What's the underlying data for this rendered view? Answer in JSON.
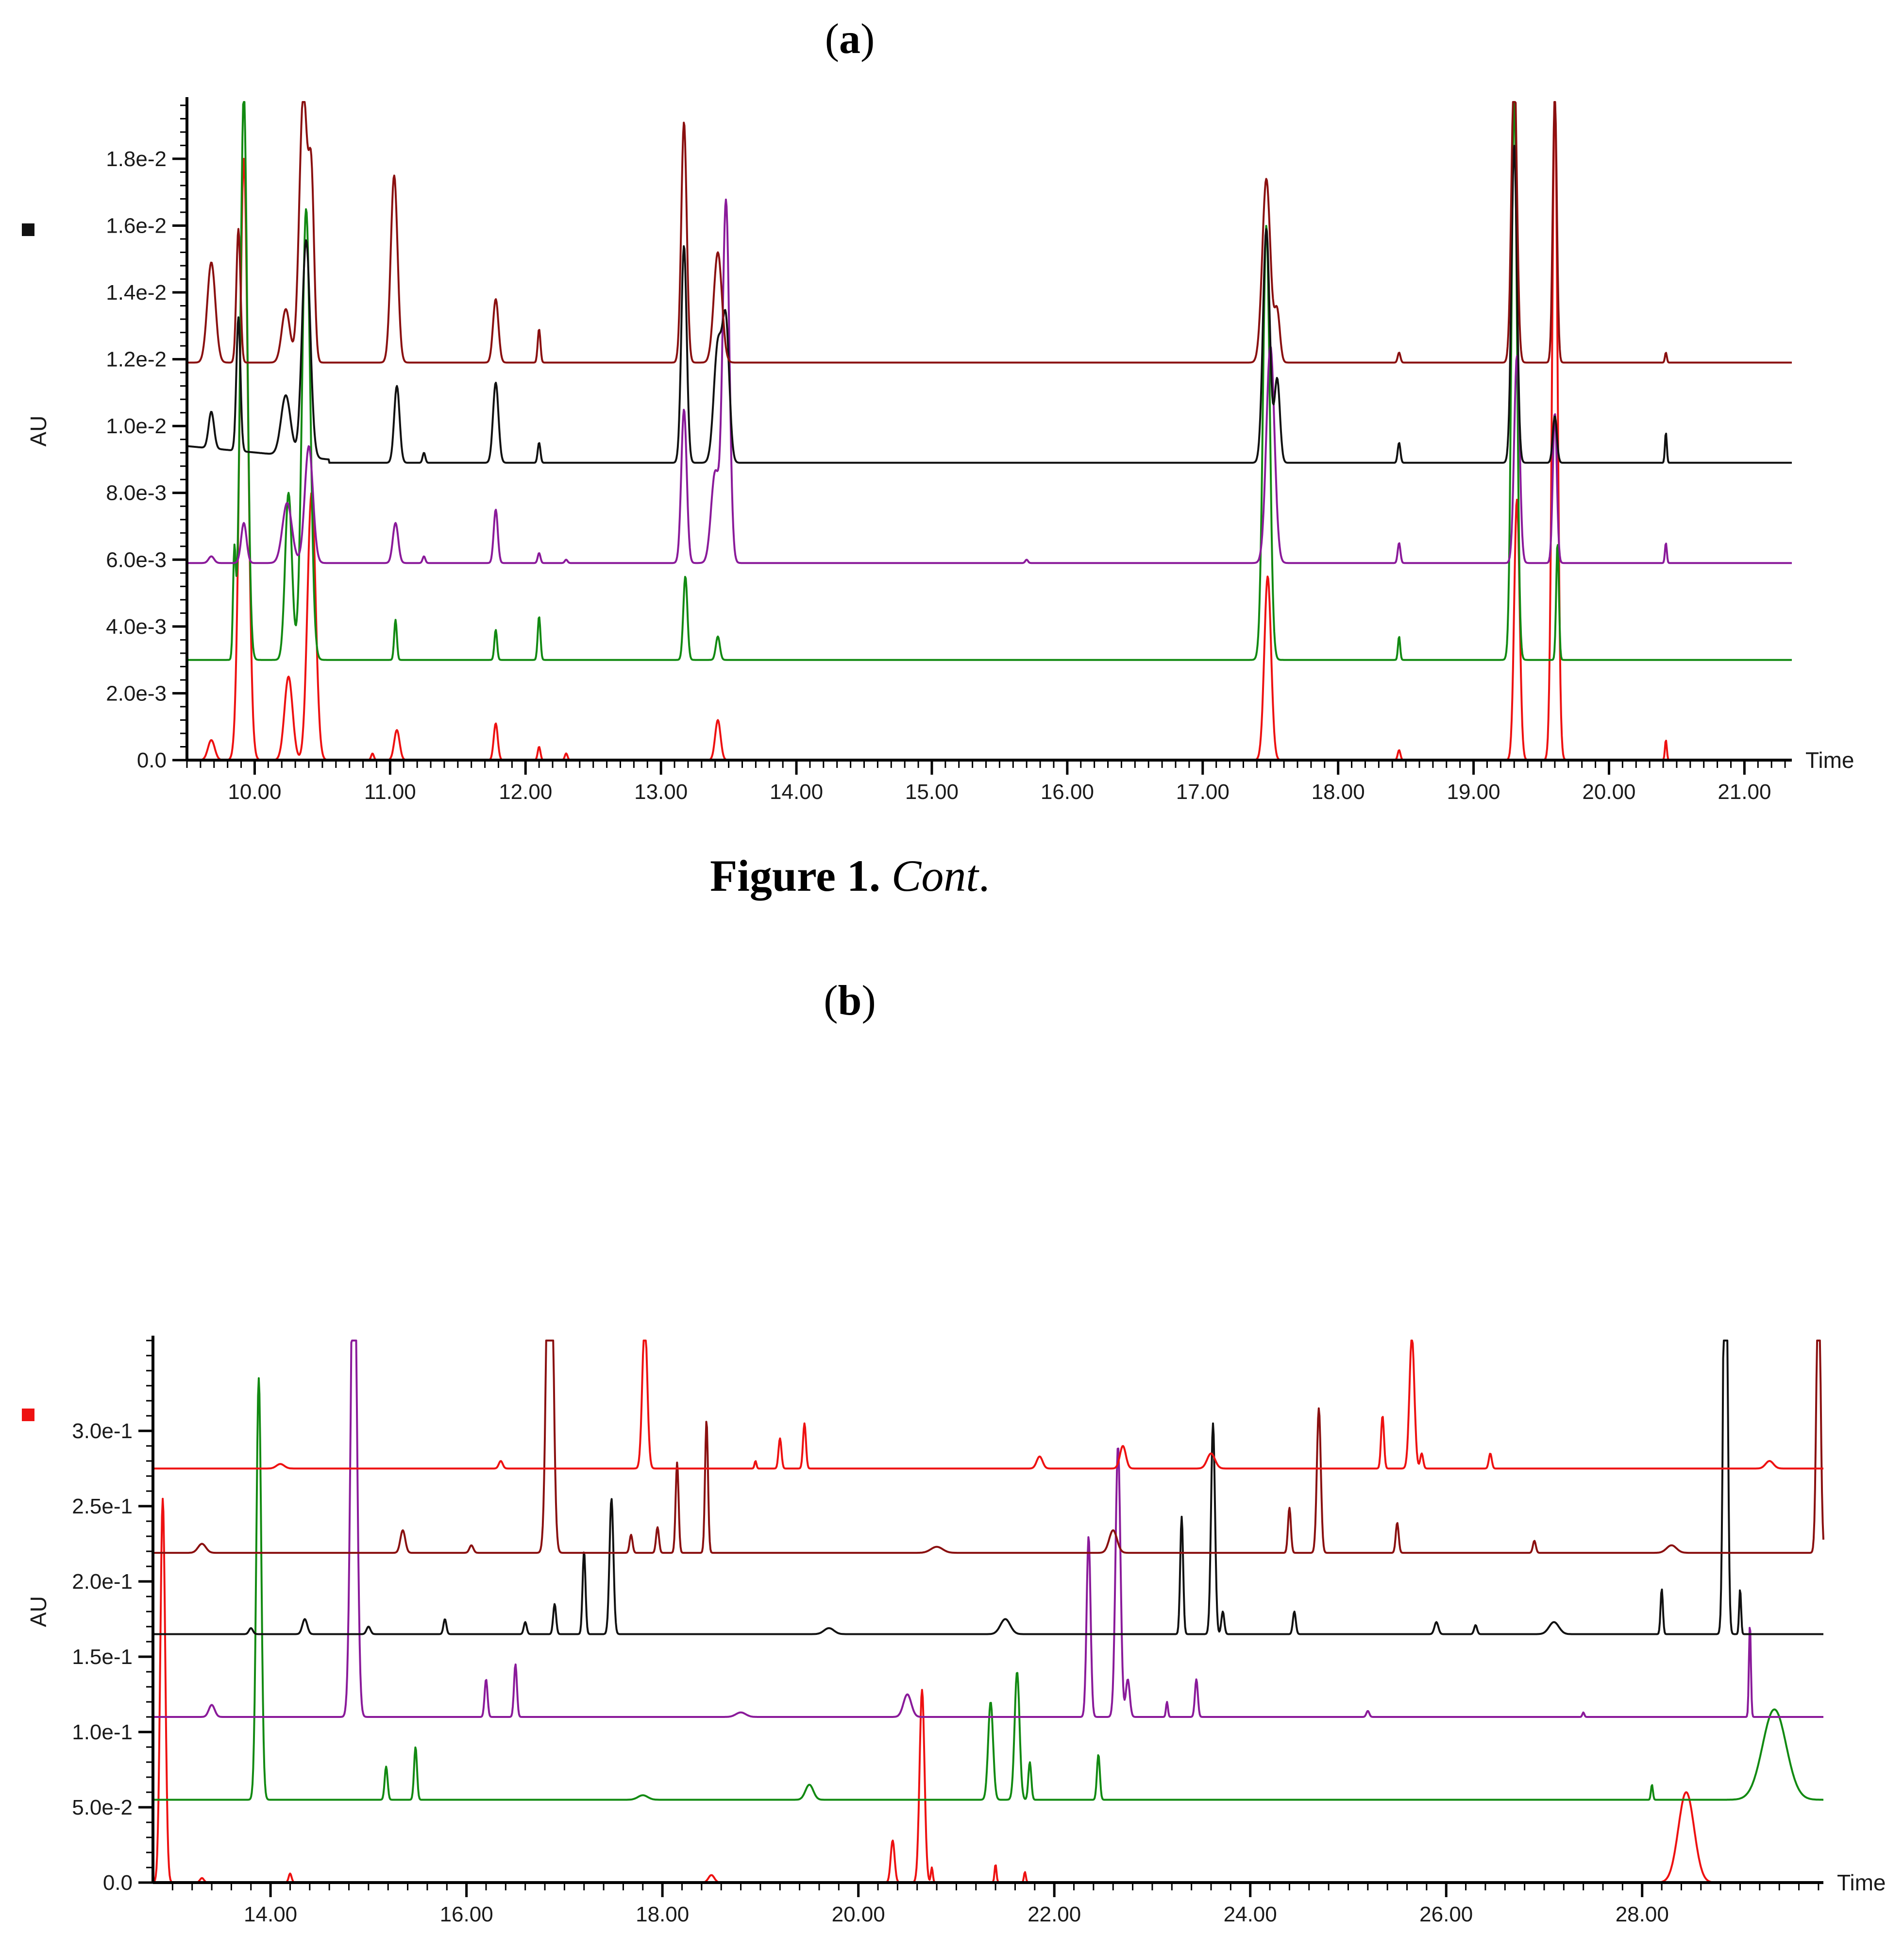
{
  "caption": {
    "bold": "Figure 1.",
    "italic": "Cont",
    "end": "."
  },
  "colors": {
    "red": "#ee1111",
    "green": "#128a12",
    "purple": "#8a1a9a",
    "black": "#111111",
    "darkred": "#8a1010",
    "axis": "#000000"
  },
  "chart_data": [
    {
      "type": "line",
      "panel_label": "a",
      "xlabel": "Time",
      "ylabel": "AU",
      "xlim": [
        9.5,
        21.35
      ],
      "ylim": [
        0,
        0.0197
      ],
      "xticks": [
        10,
        11,
        12,
        13,
        14,
        15,
        16,
        17,
        18,
        19,
        20,
        21
      ],
      "xtick_labels": [
        "10.00",
        "11.00",
        "12.00",
        "13.00",
        "14.00",
        "15.00",
        "16.00",
        "17.00",
        "18.00",
        "19.00",
        "20.00",
        "21.00"
      ],
      "yticks": [
        0,
        0.002,
        0.004,
        0.006,
        0.008,
        0.01,
        0.012,
        0.014,
        0.016,
        0.018
      ],
      "ytick_labels": [
        "0.0",
        "2.0e-3",
        "4.0e-3",
        "6.0e-3",
        "8.0e-3",
        "1.0e-2",
        "1.2e-2",
        "1.4e-2",
        "1.6e-2",
        "1.8e-2"
      ],
      "legend_marker_color": "#111111",
      "series": [
        {
          "color": "#ee1111",
          "baseline": 0.0,
          "peaks": [
            [
              9.68,
              0.0006,
              0.025
            ],
            [
              9.92,
              0.018,
              0.03
            ],
            [
              10.25,
              0.0025,
              0.03
            ],
            [
              10.42,
              0.008,
              0.03
            ],
            [
              10.87,
              0.0002,
              0.01
            ],
            [
              11.05,
              0.0009,
              0.02
            ],
            [
              11.78,
              0.0011,
              0.015
            ],
            [
              12.1,
              0.0004,
              0.01
            ],
            [
              12.3,
              0.0002,
              0.01
            ],
            [
              13.42,
              0.0012,
              0.02
            ],
            [
              17.48,
              0.0055,
              0.025
            ],
            [
              18.45,
              0.0003,
              0.01
            ],
            [
              19.32,
              0.0078,
              0.02
            ],
            [
              19.6,
              0.02,
              0.02
            ],
            [
              20.42,
              0.0006,
              0.007
            ]
          ]
        },
        {
          "color": "#128a12",
          "baseline": 0.003,
          "peaks": [
            [
              9.85,
              0.0031,
              0.01
            ],
            [
              9.92,
              0.017,
              0.025
            ],
            [
              10.25,
              0.005,
              0.025
            ],
            [
              10.38,
              0.0135,
              0.03
            ],
            [
              11.04,
              0.0012,
              0.01
            ],
            [
              11.78,
              0.0009,
              0.01
            ],
            [
              12.1,
              0.0013,
              0.01
            ],
            [
              13.18,
              0.0025,
              0.015
            ],
            [
              13.42,
              0.0007,
              0.015
            ],
            [
              17.47,
              0.013,
              0.025
            ],
            [
              18.45,
              0.0007,
              0.008
            ],
            [
              19.3,
              0.017,
              0.02
            ],
            [
              19.62,
              0.0035,
              0.01
            ]
          ]
        },
        {
          "color": "#8a1a9a",
          "baseline": 0.0059,
          "peaks": [
            [
              9.68,
              0.0002,
              0.02
            ],
            [
              9.92,
              0.0012,
              0.02
            ],
            [
              10.24,
              0.0018,
              0.035
            ],
            [
              10.4,
              0.0035,
              0.03
            ],
            [
              11.04,
              0.0012,
              0.02
            ],
            [
              11.25,
              0.0002,
              0.01
            ],
            [
              11.78,
              0.0016,
              0.015
            ],
            [
              12.1,
              0.0003,
              0.01
            ],
            [
              12.3,
              0.0001,
              0.01
            ],
            [
              13.17,
              0.0046,
              0.02
            ],
            [
              13.4,
              0.0027,
              0.03
            ],
            [
              13.48,
              0.0108,
              0.025
            ],
            [
              15.7,
              0.0001,
              0.01
            ],
            [
              17.5,
              0.0065,
              0.03
            ],
            [
              18.45,
              0.0006,
              0.01
            ],
            [
              19.32,
              0.0062,
              0.02
            ],
            [
              19.6,
              0.0045,
              0.015
            ],
            [
              20.42,
              0.0006,
              0.007
            ]
          ]
        },
        {
          "color": "#111111",
          "baseline": 0.0089,
          "drift": {
            "from": 9.5,
            "to": 10.55,
            "start": 0.0094,
            "end": 0.009
          },
          "peaks": [
            [
              9.68,
              0.0011,
              0.02
            ],
            [
              9.88,
              0.004,
              0.015
            ],
            [
              10.23,
              0.0018,
              0.035
            ],
            [
              10.38,
              0.0065,
              0.03
            ],
            [
              11.05,
              0.0023,
              0.02
            ],
            [
              11.25,
              0.0003,
              0.01
            ],
            [
              11.78,
              0.0024,
              0.02
            ],
            [
              12.1,
              0.0006,
              0.01
            ],
            [
              13.17,
              0.0065,
              0.02
            ],
            [
              13.42,
              0.0035,
              0.03
            ],
            [
              13.48,
              0.004,
              0.025
            ],
            [
              17.47,
              0.007,
              0.025
            ],
            [
              17.55,
              0.0025,
              0.02
            ],
            [
              18.45,
              0.0006,
              0.01
            ],
            [
              19.3,
              0.0095,
              0.02
            ],
            [
              19.6,
              0.0014,
              0.015
            ],
            [
              20.42,
              0.0009,
              0.007
            ]
          ]
        },
        {
          "color": "#8a1010",
          "baseline": 0.0119,
          "peaks": [
            [
              9.68,
              0.003,
              0.03
            ],
            [
              9.88,
              0.004,
              0.015
            ],
            [
              10.23,
              0.0016,
              0.03
            ],
            [
              10.36,
              0.0081,
              0.03
            ],
            [
              10.42,
              0.005,
              0.02
            ],
            [
              11.03,
              0.0056,
              0.025
            ],
            [
              11.78,
              0.0019,
              0.02
            ],
            [
              12.1,
              0.001,
              0.01
            ],
            [
              13.17,
              0.0072,
              0.02
            ],
            [
              13.42,
              0.0033,
              0.03
            ],
            [
              17.47,
              0.0055,
              0.03
            ],
            [
              17.55,
              0.0015,
              0.02
            ],
            [
              18.45,
              0.0003,
              0.01
            ],
            [
              19.3,
              0.009,
              0.02
            ],
            [
              19.6,
              0.008,
              0.015
            ],
            [
              20.42,
              0.0003,
              0.007
            ]
          ]
        }
      ]
    },
    {
      "type": "line",
      "panel_label": "b",
      "xlabel": "Time",
      "ylabel": "AU",
      "xlim": [
        12.8,
        29.85
      ],
      "ylim": [
        0,
        0.36
      ],
      "xticks": [
        14,
        16,
        18,
        20,
        22,
        24,
        26,
        28
      ],
      "xtick_labels": [
        "14.00",
        "16.00",
        "18.00",
        "20.00",
        "22.00",
        "24.00",
        "26.00",
        "28.00"
      ],
      "yticks": [
        0,
        0.05,
        0.1,
        0.15,
        0.2,
        0.25,
        0.3
      ],
      "ytick_labels": [
        "0.0",
        "5.0e-2",
        "1.0e-1",
        "1.5e-1",
        "2.0e-1",
        "2.5e-1",
        "3.0e-1"
      ],
      "legend_marker_color": "#ee1111",
      "series": [
        {
          "color": "#ee1111",
          "baseline": 0.0,
          "peaks": [
            [
              12.9,
              0.255,
              0.025
            ],
            [
              13.3,
              0.003,
              0.02
            ],
            [
              14.2,
              0.006,
              0.015
            ],
            [
              18.5,
              0.005,
              0.03
            ],
            [
              20.35,
              0.028,
              0.02
            ],
            [
              20.65,
              0.128,
              0.025
            ],
            [
              20.75,
              0.01,
              0.01
            ],
            [
              21.4,
              0.012,
              0.01
            ],
            [
              21.7,
              0.007,
              0.01
            ],
            [
              28.45,
              0.06,
              0.08
            ]
          ]
        },
        {
          "color": "#128a12",
          "baseline": 0.055,
          "peaks": [
            [
              13.88,
              0.28,
              0.025
            ],
            [
              15.18,
              0.022,
              0.015
            ],
            [
              15.48,
              0.035,
              0.015
            ],
            [
              17.8,
              0.003,
              0.05
            ],
            [
              19.5,
              0.01,
              0.04
            ],
            [
              21.35,
              0.065,
              0.025
            ],
            [
              21.62,
              0.085,
              0.025
            ],
            [
              21.75,
              0.025,
              0.015
            ],
            [
              22.45,
              0.03,
              0.015
            ],
            [
              28.1,
              0.01,
              0.01
            ],
            [
              29.35,
              0.06,
              0.12
            ]
          ]
        },
        {
          "color": "#8a1a9a",
          "baseline": 0.11,
          "peaks": [
            [
              13.4,
              0.008,
              0.03
            ],
            [
              14.85,
              0.355,
              0.03
            ],
            [
              16.2,
              0.025,
              0.015
            ],
            [
              16.5,
              0.035,
              0.015
            ],
            [
              18.8,
              0.003,
              0.05
            ],
            [
              20.5,
              0.015,
              0.04
            ],
            [
              22.35,
              0.12,
              0.02
            ],
            [
              22.65,
              0.18,
              0.025
            ],
            [
              22.75,
              0.025,
              0.02
            ],
            [
              23.15,
              0.01,
              0.01
            ],
            [
              23.45,
              0.025,
              0.015
            ],
            [
              25.2,
              0.004,
              0.015
            ],
            [
              27.4,
              0.003,
              0.01
            ],
            [
              29.1,
              0.062,
              0.01
            ]
          ]
        },
        {
          "color": "#111111",
          "baseline": 0.165,
          "peaks": [
            [
              13.8,
              0.004,
              0.02
            ],
            [
              14.35,
              0.01,
              0.025
            ],
            [
              15.0,
              0.005,
              0.02
            ],
            [
              15.78,
              0.01,
              0.015
            ],
            [
              16.6,
              0.008,
              0.015
            ],
            [
              16.9,
              0.02,
              0.015
            ],
            [
              17.2,
              0.055,
              0.015
            ],
            [
              17.48,
              0.09,
              0.02
            ],
            [
              19.7,
              0.004,
              0.05
            ],
            [
              21.5,
              0.01,
              0.05
            ],
            [
              23.3,
              0.078,
              0.015
            ],
            [
              23.62,
              0.14,
              0.02
            ],
            [
              23.72,
              0.015,
              0.015
            ],
            [
              24.45,
              0.015,
              0.015
            ],
            [
              25.9,
              0.008,
              0.02
            ],
            [
              26.3,
              0.006,
              0.015
            ],
            [
              27.1,
              0.008,
              0.05
            ],
            [
              28.2,
              0.03,
              0.012
            ],
            [
              28.85,
              0.355,
              0.02
            ],
            [
              29.0,
              0.03,
              0.01
            ]
          ]
        },
        {
          "color": "#8a1010",
          "baseline": 0.219,
          "peaks": [
            [
              13.3,
              0.006,
              0.04
            ],
            [
              15.35,
              0.015,
              0.025
            ],
            [
              16.05,
              0.005,
              0.02
            ],
            [
              16.85,
              0.31,
              0.03
            ],
            [
              17.68,
              0.012,
              0.015
            ],
            [
              17.95,
              0.017,
              0.015
            ],
            [
              18.15,
              0.06,
              0.015
            ],
            [
              18.45,
              0.088,
              0.015
            ],
            [
              20.8,
              0.004,
              0.06
            ],
            [
              22.6,
              0.015,
              0.04
            ],
            [
              24.4,
              0.03,
              0.015
            ],
            [
              24.7,
              0.096,
              0.02
            ],
            [
              25.5,
              0.02,
              0.015
            ],
            [
              26.9,
              0.008,
              0.015
            ],
            [
              28.3,
              0.005,
              0.05
            ],
            [
              29.8,
              0.2,
              0.02
            ]
          ]
        },
        {
          "color": "#ee1111",
          "baseline": 0.275,
          "peaks": [
            [
              14.1,
              0.003,
              0.04
            ],
            [
              16.35,
              0.005,
              0.02
            ],
            [
              17.82,
              0.1,
              0.025
            ],
            [
              18.95,
              0.005,
              0.01
            ],
            [
              19.2,
              0.02,
              0.015
            ],
            [
              19.45,
              0.03,
              0.015
            ],
            [
              21.85,
              0.008,
              0.03
            ],
            [
              22.7,
              0.015,
              0.03
            ],
            [
              23.6,
              0.01,
              0.04
            ],
            [
              25.35,
              0.035,
              0.015
            ],
            [
              25.65,
              0.088,
              0.025
            ],
            [
              25.75,
              0.01,
              0.015
            ],
            [
              26.45,
              0.01,
              0.015
            ],
            [
              29.3,
              0.005,
              0.04
            ]
          ]
        }
      ]
    }
  ]
}
